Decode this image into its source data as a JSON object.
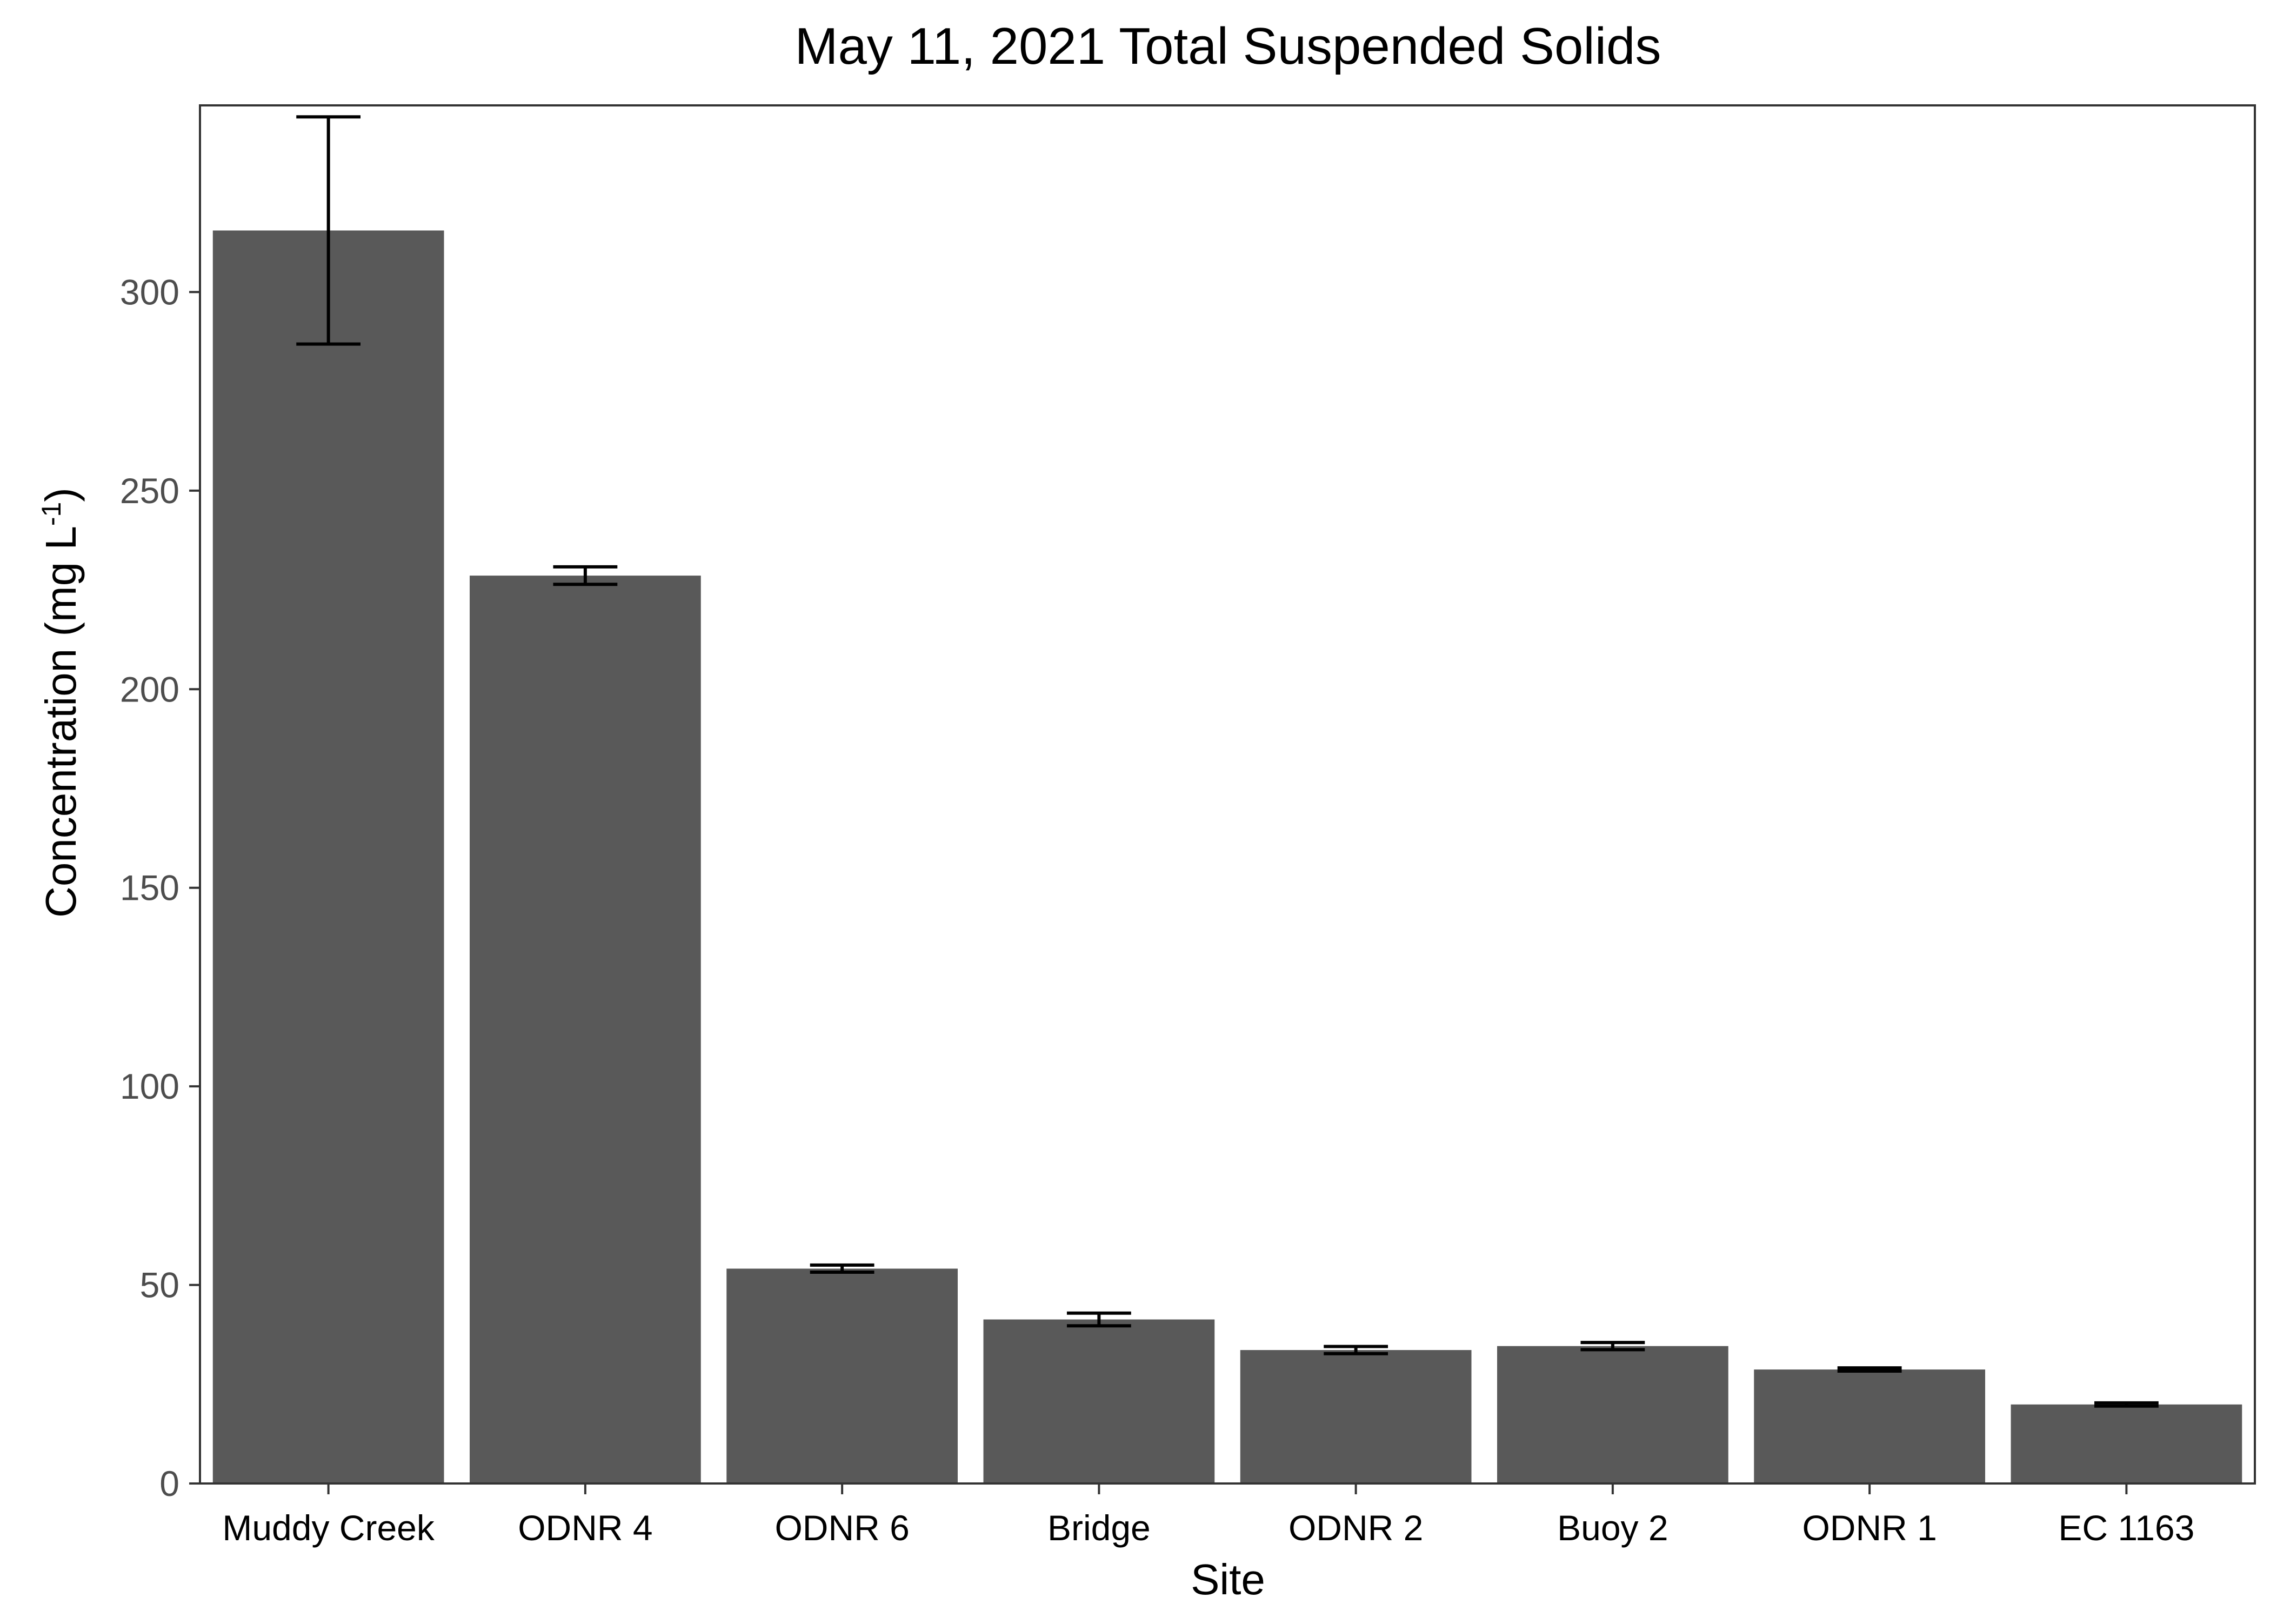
{
  "chart_data": {
    "type": "bar",
    "title": "May 11, 2021 Total Suspended Solids",
    "xlabel": "Site",
    "ylabel_main": "Concentration (mg L",
    "ylabel_superscript": "-1",
    "ylabel_close": ")",
    "categories": [
      "Muddy Creek",
      "ODNR 4",
      "ODNR 6",
      "Bridge",
      "ODNR 2",
      "Buoy 2",
      "ODNR 1",
      "EC 1163"
    ],
    "values": [
      315.5,
      228.6,
      54.1,
      41.3,
      33.6,
      34.6,
      28.7,
      19.9
    ],
    "error_low": [
      286.9,
      226.4,
      53.2,
      39.7,
      32.7,
      33.7,
      28.3,
      19.5
    ],
    "error_high": [
      344.1,
      230.8,
      55.0,
      42.9,
      34.5,
      35.5,
      29.1,
      20.3
    ],
    "ylim": [
      0,
      347
    ],
    "yticks": [
      0,
      50,
      100,
      150,
      200,
      250,
      300
    ],
    "bar_color": "#595959",
    "error_color": "#000000",
    "grid": false,
    "legend": "none"
  }
}
